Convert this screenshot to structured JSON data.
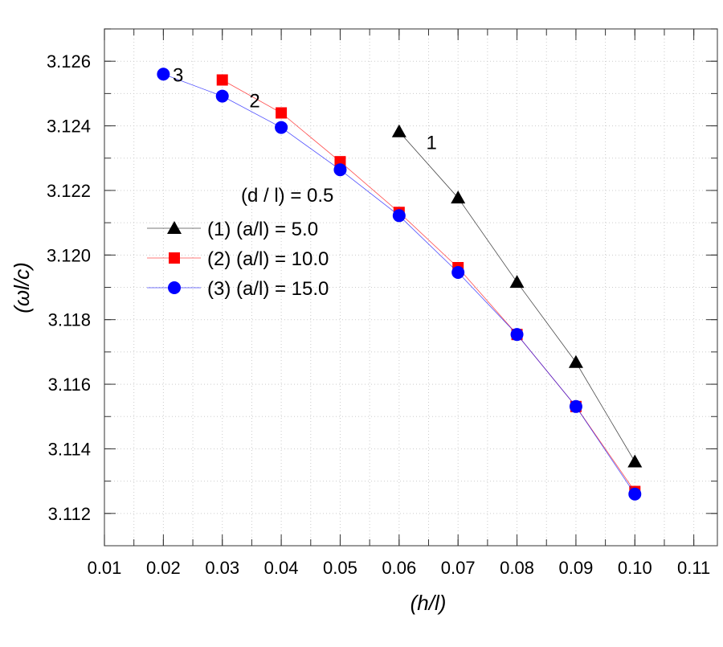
{
  "chart_data": {
    "type": "line",
    "title": "",
    "xlabel": "(h/l)",
    "ylabel": "(ωl/c)",
    "xlim": [
      0.01,
      0.114
    ],
    "ylim": [
      3.111,
      3.127
    ],
    "grid": true,
    "xticks": [
      "0.01",
      "0.02",
      "0.03",
      "0.04",
      "0.05",
      "0.06",
      "0.07",
      "0.08",
      "0.09",
      "0.10",
      "0.11"
    ],
    "xtick_values": [
      0.01,
      0.02,
      0.03,
      0.04,
      0.05,
      0.06,
      0.07,
      0.08,
      0.09,
      0.1,
      0.11
    ],
    "yticks": [
      "3.112",
      "3.114",
      "3.116",
      "3.118",
      "3.120",
      "3.122",
      "3.124",
      "3.126"
    ],
    "ytick_values": [
      3.112,
      3.114,
      3.116,
      3.118,
      3.12,
      3.122,
      3.124,
      3.126
    ],
    "legend_title": "(d / l) = 0.5",
    "legend_placement": "center-left",
    "series": [
      {
        "name": "(1) (a/l) =  5.0",
        "color": "#000000",
        "marker": "triangle",
        "x": [
          0.06,
          0.07,
          0.08,
          0.09,
          0.1
        ],
        "y": [
          3.12382,
          3.12177,
          3.11916,
          3.11668,
          3.1136
        ]
      },
      {
        "name": "(2) (a/l) =  10.0",
        "color": "#ff0000",
        "marker": "square",
        "x": [
          0.03,
          0.04,
          0.05,
          0.06,
          0.07,
          0.08,
          0.09,
          0.1
        ],
        "y": [
          3.12542,
          3.1244,
          3.12289,
          3.12132,
          3.11961,
          3.11754,
          3.11531,
          3.11268
        ]
      },
      {
        "name": "(3) (a/l) =  15.0",
        "color": "#0000ff",
        "marker": "circle",
        "x": [
          0.02,
          0.03,
          0.04,
          0.05,
          0.06,
          0.07,
          0.08,
          0.09,
          0.1
        ],
        "y": [
          3.1256,
          3.12492,
          3.12395,
          3.12264,
          3.12122,
          3.11946,
          3.11754,
          3.11531,
          3.1126
        ]
      }
    ],
    "annotations": [
      {
        "text": "1",
        "x": 0.0655,
        "y": 3.1235
      },
      {
        "text": "2",
        "x": 0.0355,
        "y": 3.1248
      },
      {
        "text": "3",
        "x": 0.0225,
        "y": 3.1256
      }
    ]
  }
}
